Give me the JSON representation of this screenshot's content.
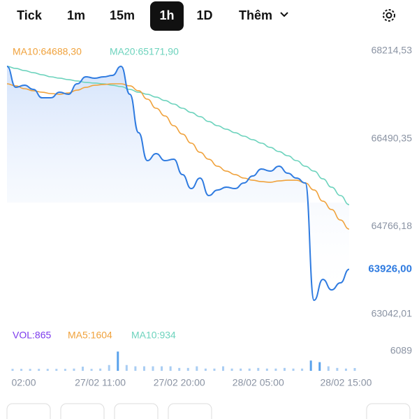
{
  "tabs": [
    "Tick",
    "1m",
    "15m",
    "1h",
    "1D",
    "Thêm"
  ],
  "selected_tab": 3,
  "chart_data": [
    {
      "type": "line",
      "legend": [
        "MA10:64688,30",
        "MA20:65171,90"
      ],
      "annotations": [
        "63926,00"
      ],
      "ylim": [
        62905,
        68392
      ],
      "yticks": [
        {
          "value": 68214.53,
          "label": "68214,53"
        },
        {
          "value": 66490.35,
          "label": "66490,35"
        },
        {
          "value": 64766.18,
          "label": "64766,18"
        },
        {
          "value": 63042.01,
          "label": "63042,01"
        }
      ],
      "series": [
        {
          "color": "#2f7be0",
          "values": [
            67912,
            67500,
            67541,
            67459,
            67294,
            67294,
            67404,
            67363,
            67569,
            67706,
            67679,
            67706,
            67733,
            67912,
            67363,
            66608,
            66060,
            66197,
            66060,
            66087,
            65785,
            65511,
            65717,
            65374,
            65483,
            65538,
            65511,
            65621,
            65758,
            65895,
            65854,
            65950,
            65813,
            65717,
            65621,
            63316,
            63727,
            63521,
            63659,
            63926
          ]
        },
        {
          "color": "#f0a23c",
          "values": [
            67569,
            67528,
            67473,
            67432,
            67404,
            67377,
            67363,
            67390,
            67445,
            67500,
            67541,
            67555,
            67569,
            67569,
            67528,
            67432,
            67267,
            67089,
            66938,
            66746,
            66581,
            66403,
            66224,
            66087,
            65950,
            65854,
            65785,
            65717,
            65675,
            65648,
            65634,
            65662,
            65675,
            65675,
            65621,
            65483,
            65264,
            65099,
            64893,
            64715
          ]
        },
        {
          "color": "#6dd3bd",
          "values": [
            67912,
            67871,
            67829,
            67788,
            67747,
            67706,
            67679,
            67651,
            67624,
            67596,
            67583,
            67569,
            67541,
            67514,
            67459,
            67404,
            67363,
            67308,
            67240,
            67171,
            67089,
            67006,
            66924,
            66828,
            66746,
            66677,
            66608,
            66540,
            66471,
            66403,
            66320,
            66238,
            66156,
            66060,
            65950,
            65854,
            65703,
            65538,
            65374,
            65195
          ]
        }
      ]
    },
    {
      "type": "bar",
      "legend": [
        "VOL:865",
        "MA5:1604",
        "MA10:934"
      ],
      "categories": [
        null,
        "02:00",
        null,
        null,
        null,
        null,
        null,
        null,
        null,
        null,
        "27/02 11:00",
        null,
        null,
        null,
        null,
        null,
        null,
        null,
        null,
        "27/02 20:00",
        null,
        null,
        null,
        null,
        null,
        null,
        null,
        null,
        "28/02 05:00",
        null,
        null,
        null,
        null,
        null,
        null,
        null,
        null,
        null,
        "28/02 15:00",
        null
      ],
      "ylim": [
        0,
        6089
      ],
      "yticks": [
        6089
      ],
      "color": "#a9cdf3",
      "highlight_color": "#5aa2ec",
      "values": [
        600,
        600,
        600,
        600,
        600,
        600,
        600,
        700,
        1300,
        600,
        700,
        1800,
        6000,
        1800,
        1400,
        1400,
        1400,
        1400,
        1400,
        900,
        900,
        1400,
        700,
        700,
        1400,
        700,
        700,
        700,
        900,
        700,
        700,
        900,
        700,
        700,
        3200,
        2700,
        1400,
        900,
        700,
        865
      ]
    }
  ]
}
